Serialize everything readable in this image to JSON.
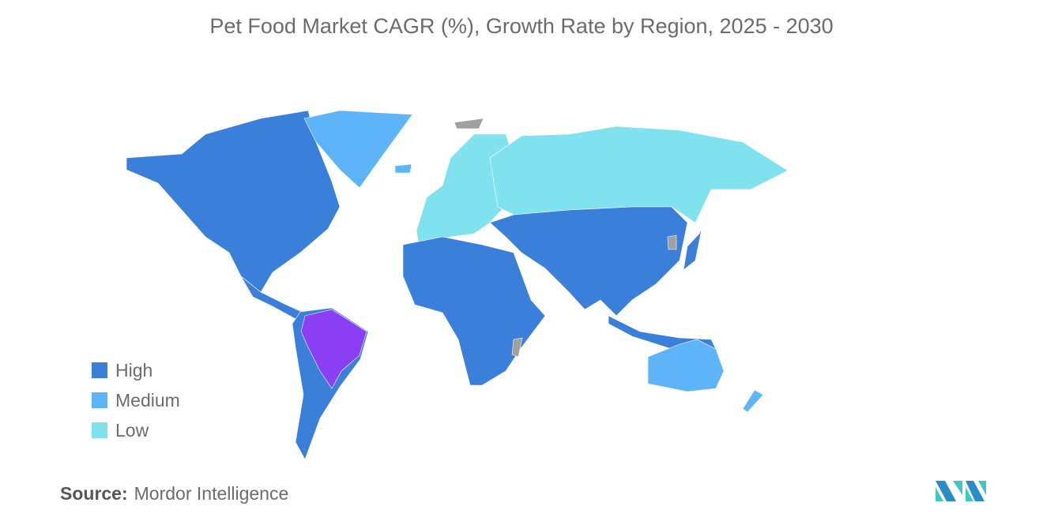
{
  "title": "Pet Food Market CAGR (%), Growth Rate by Region, 2025 - 2030",
  "legend": [
    {
      "label": "High",
      "color": "#3a7fd9"
    },
    {
      "label": "Medium",
      "color": "#5db4f8"
    },
    {
      "label": "Low",
      "color": "#7fe2ee"
    }
  ],
  "colors": {
    "highlight": "#8a3ff5",
    "no_data": "#a0a0a0"
  },
  "chart_data": {
    "type": "choropleth",
    "title": "Pet Food Market CAGR (%), Growth Rate by Region, 2025 - 2030",
    "categories": [
      "High",
      "Medium",
      "Low"
    ],
    "regions": [
      {
        "level": "High"
      },
      {
        "level": "High"
      },
      {
        "level": "Medium"
      },
      {
        "level": "High"
      },
      {
        "level": "Highlight"
      },
      {
        "level": "Low"
      },
      {
        "level": "Low"
      },
      {
        "level": "High"
      },
      {
        "level": "High"
      },
      {
        "level": "High"
      },
      {
        "level": "High"
      },
      {
        "level": "Medium"
      },
      {
        "level": "Medium"
      },
      {
        "level": "No data"
      },
      {
        "level": "No data"
      },
      {
        "level": "No data"
      },
      {
        "level": "Medium"
      }
    ],
    "legend_position": "bottom-left"
  },
  "source": {
    "label": "Source:",
    "value": "Mordor Intelligence"
  }
}
